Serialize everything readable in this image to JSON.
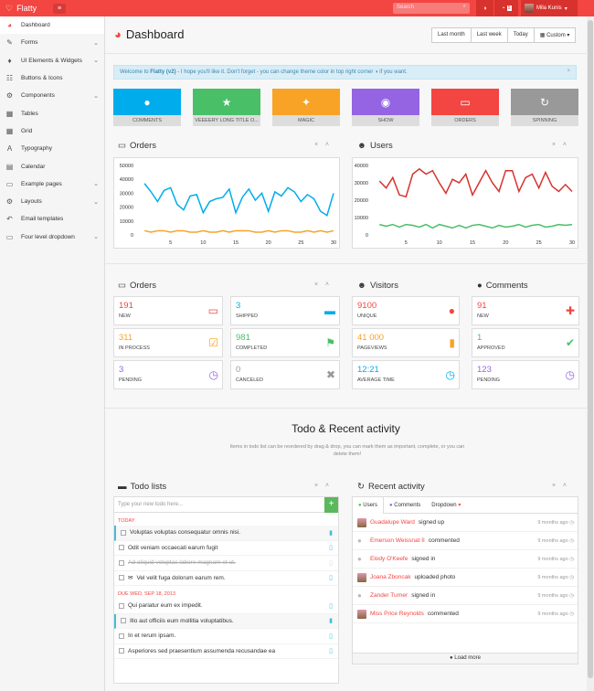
{
  "topbar": {
    "brand": "Flatty",
    "search_placeholder": "Search",
    "messages_count": "5",
    "user_name": "Mila Kunis"
  },
  "sidebar": {
    "items": [
      {
        "label": "Dashboard",
        "icon": "gauge-icon",
        "chevron": false
      },
      {
        "label": "Forms",
        "icon": "edit-icon",
        "chevron": true
      },
      {
        "label": "UI Elements & Widgets",
        "icon": "tint-icon",
        "chevron": true
      },
      {
        "label": "Buttons & Icons",
        "icon": "tasks-icon",
        "chevron": false
      },
      {
        "label": "Components",
        "icon": "cogs-icon",
        "chevron": true
      },
      {
        "label": "Tables",
        "icon": "table-icon",
        "chevron": false
      },
      {
        "label": "Grid",
        "icon": "grid-icon",
        "chevron": false
      },
      {
        "label": "Typography",
        "icon": "font-icon",
        "chevron": false
      },
      {
        "label": "Calendar",
        "icon": "calendar-icon",
        "chevron": false
      },
      {
        "label": "Example pages",
        "icon": "folder-icon",
        "chevron": true
      },
      {
        "label": "Layouts",
        "icon": "gear-icon",
        "chevron": true
      },
      {
        "label": "Email templates",
        "icon": "reply-icon",
        "chevron": false
      },
      {
        "label": "Four level dropdown",
        "icon": "folder-open-icon",
        "chevron": true
      }
    ]
  },
  "header": {
    "title": "Dashboard",
    "ranges": [
      "Last month",
      "Last week",
      "Today",
      "Custom"
    ]
  },
  "alert": {
    "pre": "Welcome to ",
    "brand": "Flatty (v2)",
    "post": " - I hope you'll like it. Don't forget - you can change theme color in top right corner ",
    "tail": " if you want."
  },
  "tiles": [
    {
      "label": "Comments",
      "color": "#00acec",
      "icon": "comments-icon"
    },
    {
      "label": "Veeeery long title o...",
      "color": "#49bf67",
      "icon": "star-icon"
    },
    {
      "label": "Magic",
      "color": "#f8a326",
      "icon": "magic-icon"
    },
    {
      "label": "Show",
      "color": "#9564e2",
      "icon": "eye-icon"
    },
    {
      "label": "Orders",
      "color": "#f34541",
      "icon": "inbox-icon"
    },
    {
      "label": "Spinning",
      "color": "#999999",
      "icon": "refresh-icon"
    }
  ],
  "orders_chart_title": "Orders",
  "users_chart_title": "Users",
  "chart_data": [
    {
      "type": "line",
      "x_ticks": [
        5,
        10,
        15,
        20,
        25,
        30
      ],
      "y_ticks": [
        0,
        10000,
        20000,
        30000,
        40000,
        50000
      ],
      "ylim": [
        0,
        50000
      ],
      "xlim": [
        0,
        30
      ],
      "series": [
        {
          "color": "#00acec",
          "values": [
            37000,
            31000,
            24000,
            32000,
            34000,
            22000,
            18000,
            28000,
            29000,
            16000,
            24000,
            26000,
            27000,
            33000,
            16000,
            27000,
            33000,
            25000,
            30000,
            17000,
            31000,
            28000,
            34000,
            31000,
            24000,
            29000,
            26000,
            17000,
            14000,
            30000
          ]
        },
        {
          "color": "#f8a326",
          "values": [
            3000,
            2000,
            3000,
            3000,
            2000,
            3000,
            3000,
            2000,
            2000,
            3000,
            2000,
            2000,
            3000,
            2000,
            3000,
            3000,
            3000,
            2000,
            2000,
            3000,
            2000,
            3000,
            3000,
            2000,
            2000,
            3000,
            2000,
            3000,
            2000,
            3000
          ]
        }
      ]
    },
    {
      "type": "line",
      "x_ticks": [
        5,
        10,
        15,
        20,
        25,
        30
      ],
      "y_ticks": [
        0,
        10000,
        20000,
        30000,
        40000
      ],
      "ylim": [
        0,
        40000
      ],
      "xlim": [
        0,
        30
      ],
      "series": [
        {
          "color": "#d8322e",
          "values": [
            31000,
            27000,
            33000,
            23000,
            22000,
            35000,
            38000,
            35000,
            37000,
            30000,
            24000,
            32000,
            30000,
            35000,
            23000,
            30000,
            37000,
            30000,
            25000,
            37000,
            37000,
            25000,
            33000,
            35000,
            27000,
            36000,
            28000,
            25000,
            29000,
            25000
          ]
        },
        {
          "color": "#49bf67",
          "values": [
            6000,
            5000,
            6000,
            4500,
            6000,
            5500,
            4500,
            6000,
            4000,
            6000,
            5000,
            4000,
            5500,
            4000,
            5500,
            6000,
            5000,
            4000,
            5500,
            4500,
            5000,
            6000,
            4500,
            5500,
            6000,
            4500,
            5000,
            6000,
            5500,
            6000
          ]
        }
      ]
    }
  ],
  "stats_orders": {
    "title": "Orders",
    "items": [
      {
        "value": "191",
        "label": "New",
        "color": "#f34541",
        "icon": "inbox-icon"
      },
      {
        "value": "3",
        "label": "Shipped",
        "color": "#00acec",
        "icon": "truck-icon"
      },
      {
        "value": "311",
        "label": "In process",
        "color": "#f8a326",
        "icon": "check-square-icon"
      },
      {
        "value": "981",
        "label": "Completed",
        "color": "#49bf67",
        "icon": "flag-icon"
      },
      {
        "value": "3",
        "label": "Pending",
        "color": "#9564e2",
        "icon": "clock-icon"
      },
      {
        "value": "0",
        "label": "Canceled",
        "color": "#999999",
        "icon": "close-icon"
      }
    ]
  },
  "stats_visitors": {
    "title": "Visitors",
    "items": [
      {
        "value": "9100",
        "label": "Unique",
        "color": "#f34541",
        "icon": "user-icon"
      },
      {
        "value": "41 000",
        "label": "Pageviews",
        "color": "#f8a326",
        "icon": "book-icon"
      },
      {
        "value": "12:21",
        "label": "Average time",
        "color": "#00acec",
        "icon": "clock-icon"
      }
    ]
  },
  "stats_comments": {
    "title": "Comments",
    "items": [
      {
        "value": "91",
        "label": "New",
        "color": "#f34541",
        "icon": "plus-icon"
      },
      {
        "value": "1",
        "label": "Approved",
        "color": "#49bf67",
        "icon": "check-icon"
      },
      {
        "value": "123",
        "label": "Pending",
        "color": "#9564e2",
        "icon": "clock-icon"
      }
    ]
  },
  "section": {
    "title": "Todo & Recent activity",
    "subtitle": "Items in todo list can be reordered by drag & drop, you can mark them as important, complete, or you can delete them!"
  },
  "todo": {
    "title": "Todo lists",
    "placeholder": "Type your new todo here...",
    "today_label": "Today",
    "due_label": "Due Wed, Sep 18, 2013",
    "today": [
      {
        "text": "Voluptas voluptas consequatur omnis nisi.",
        "imp": true,
        "done": false,
        "bm": true
      },
      {
        "text": "Odit veniam occaecati earum fugit",
        "imp": false,
        "done": false,
        "bm": false
      },
      {
        "text": "Ad aliquid voluptas labore magnam et ut.",
        "imp": false,
        "done": true,
        "bm": false
      },
      {
        "text": "Vel velit fuga dolorum earum rem.",
        "imp": false,
        "done": false,
        "bm": false,
        "env": true
      }
    ],
    "due": [
      {
        "text": "Qui pariatur eum ex impedit.",
        "imp": false,
        "done": false,
        "bm": false
      },
      {
        "text": "Illo aut officiis eum mollitia voluptatibus.",
        "imp": true,
        "done": false,
        "bm": true
      },
      {
        "text": "In et rerum ipsam.",
        "imp": false,
        "done": false,
        "bm": false
      },
      {
        "text": "Asperiores sed praesentium assumenda recusandae ea",
        "imp": false,
        "done": false,
        "bm": false
      }
    ]
  },
  "activity": {
    "title": "Recent activity",
    "tabs": [
      "Users",
      "Comments",
      "Dropdown"
    ],
    "load_more": "Load more",
    "rows": [
      {
        "who": "Guadalupe Ward",
        "what": "signed up",
        "when": "9 months ago",
        "photo": true
      },
      {
        "who": "Emerson Weissnat II",
        "what": "commented",
        "when": "9 months ago",
        "photo": false
      },
      {
        "who": "Elody O'Keefe",
        "what": "signed in",
        "when": "9 months ago",
        "photo": false
      },
      {
        "who": "Joana Zboncak",
        "what": "uploaded photo",
        "when": "9 months ago",
        "photo": true
      },
      {
        "who": "Zander Turner",
        "what": "signed in",
        "when": "9 months ago",
        "photo": false
      },
      {
        "who": "Miss Price Reynolds",
        "what": "commented",
        "when": "9 months ago",
        "photo": true
      }
    ]
  }
}
